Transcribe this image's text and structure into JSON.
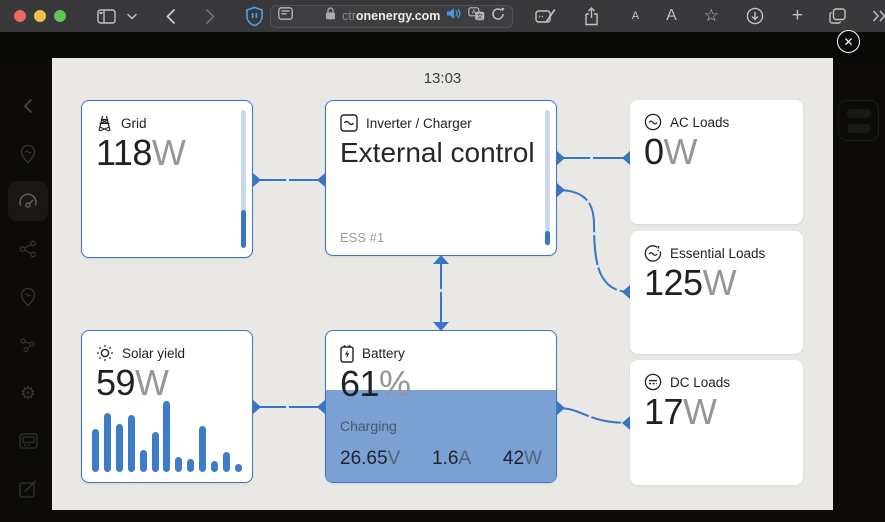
{
  "browser": {
    "url_faded": "ctr",
    "url_main": "onenergy.com",
    "font_smaller_label": "A",
    "font_larger_label": "A",
    "toolbar_icons": [
      "traffic-lights",
      "sidebar-toggle-icon",
      "chevron-down-icon",
      "back-icon",
      "forward-icon",
      "shield-pause-icon",
      "reader-icon",
      "lock-icon",
      "speaker-icon",
      "translate-icon",
      "reload-icon",
      "compose-icon",
      "share-icon",
      "font-size-buttons",
      "star-icon",
      "download-icon",
      "new-tab-plus-icon",
      "tabs-icon",
      "more-chevrons-icon"
    ]
  },
  "sidebar_icons": [
    "chevron-left",
    "location-pin",
    "dashboard-gauge",
    "share-nodes",
    "location-pin-wave",
    "topology-nodes",
    "settings-gear",
    "remote-console",
    "edit-pencil"
  ],
  "overlay": {
    "time": "13:03",
    "close_glyph": "✕"
  },
  "cards": {
    "grid": {
      "label": "Grid",
      "value": "118",
      "unit": "W"
    },
    "inverter": {
      "label": "Inverter / Charger",
      "mode": "External control",
      "note": "ESS #1"
    },
    "ac_loads": {
      "label": "AC Loads",
      "value": "0",
      "unit": "W"
    },
    "essential_loads": {
      "label": "Essential Loads",
      "value": "125",
      "unit": "W"
    },
    "solar": {
      "label": "Solar yield",
      "value": "59",
      "unit": "W"
    },
    "battery": {
      "label": "Battery",
      "soc": "61",
      "soc_unit": "%",
      "soc_percent": 61,
      "status": "Charging",
      "voltage": "26.65",
      "voltage_unit": "V",
      "current": "1.6",
      "current_unit": "A",
      "power": "42",
      "power_unit": "W"
    },
    "dc_loads": {
      "label": "DC Loads",
      "value": "17",
      "unit": "W"
    }
  },
  "chart_data": {
    "type": "bar",
    "title": "Solar yield history (unlabeled sparkline bars)",
    "values": [
      53,
      72,
      58,
      69,
      27,
      49,
      87,
      18,
      16,
      56,
      13,
      24,
      10
    ],
    "note": "relative bar heights in % of chart area; no axis labels shown",
    "bar_color": "#3d7cc9"
  },
  "colors": {
    "accent_blue": "#3a74c4",
    "battery_fill": "#7ba0d4",
    "panel_bg": "#e9e8e4",
    "page_bg": "#0c0b09",
    "chrome_bg": "#39393b"
  }
}
